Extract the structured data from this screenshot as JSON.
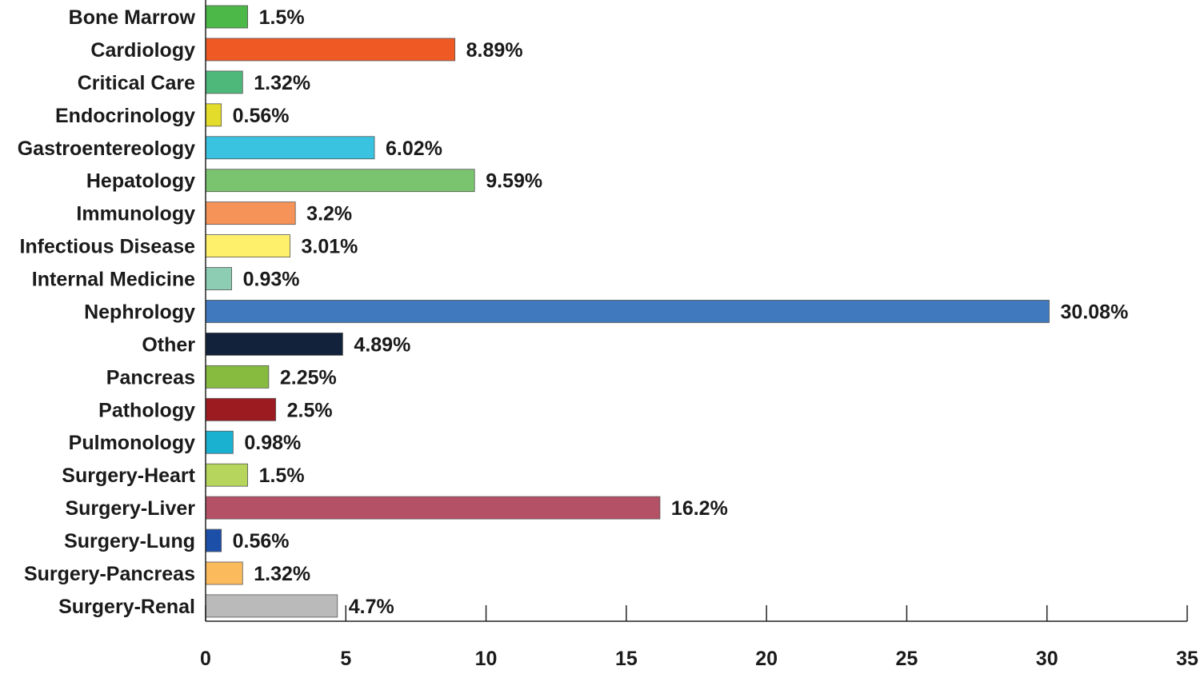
{
  "chart_data": {
    "type": "bar",
    "orientation": "horizontal",
    "categories": [
      "Bone Marrow",
      "Cardiology",
      "Critical Care",
      "Endocrinology",
      "Gastroentereology",
      "Hepatology",
      "Immunology",
      "Infectious Disease",
      "Internal Medicine",
      "Nephrology",
      "Other",
      "Pancreas",
      "Pathology",
      "Pulmonology",
      "Surgery-Heart",
      "Surgery-Liver",
      "Surgery-Lung",
      "Surgery-Pancreas",
      "Surgery-Renal"
    ],
    "values": [
      1.5,
      8.89,
      1.32,
      0.56,
      6.02,
      9.59,
      3.2,
      3.01,
      0.93,
      30.08,
      4.89,
      2.25,
      2.5,
      0.98,
      1.5,
      16.2,
      0.56,
      1.32,
      4.7
    ],
    "value_labels": [
      "1.5%",
      "8.89%",
      "1.32%",
      "0.56%",
      "6.02%",
      "9.59%",
      "3.2%",
      "3.01%",
      "0.93%",
      "30.08%",
      "4.89%",
      "2.25%",
      "2.5%",
      "0.98%",
      "1.5%",
      "16.2%",
      "0.56%",
      "1.32%",
      "4.7%"
    ],
    "colors": [
      "#4cb848",
      "#ef5a24",
      "#4db879",
      "#e4dc2b",
      "#3ac3e0",
      "#7bc46f",
      "#f69358",
      "#fef06a",
      "#8ccdb4",
      "#4179bf",
      "#11223a",
      "#86bb40",
      "#9b1b20",
      "#1ab0d0",
      "#b5d55c",
      "#b55167",
      "#1c4fa8",
      "#fbbb5c",
      "#bababa"
    ],
    "x_ticks": [
      "0",
      "5",
      "10",
      "15",
      "20",
      "25",
      "30",
      "35"
    ],
    "xlim": [
      0,
      35
    ],
    "title": "",
    "xlabel": "",
    "ylabel": "",
    "grid": false,
    "legend": "none"
  }
}
